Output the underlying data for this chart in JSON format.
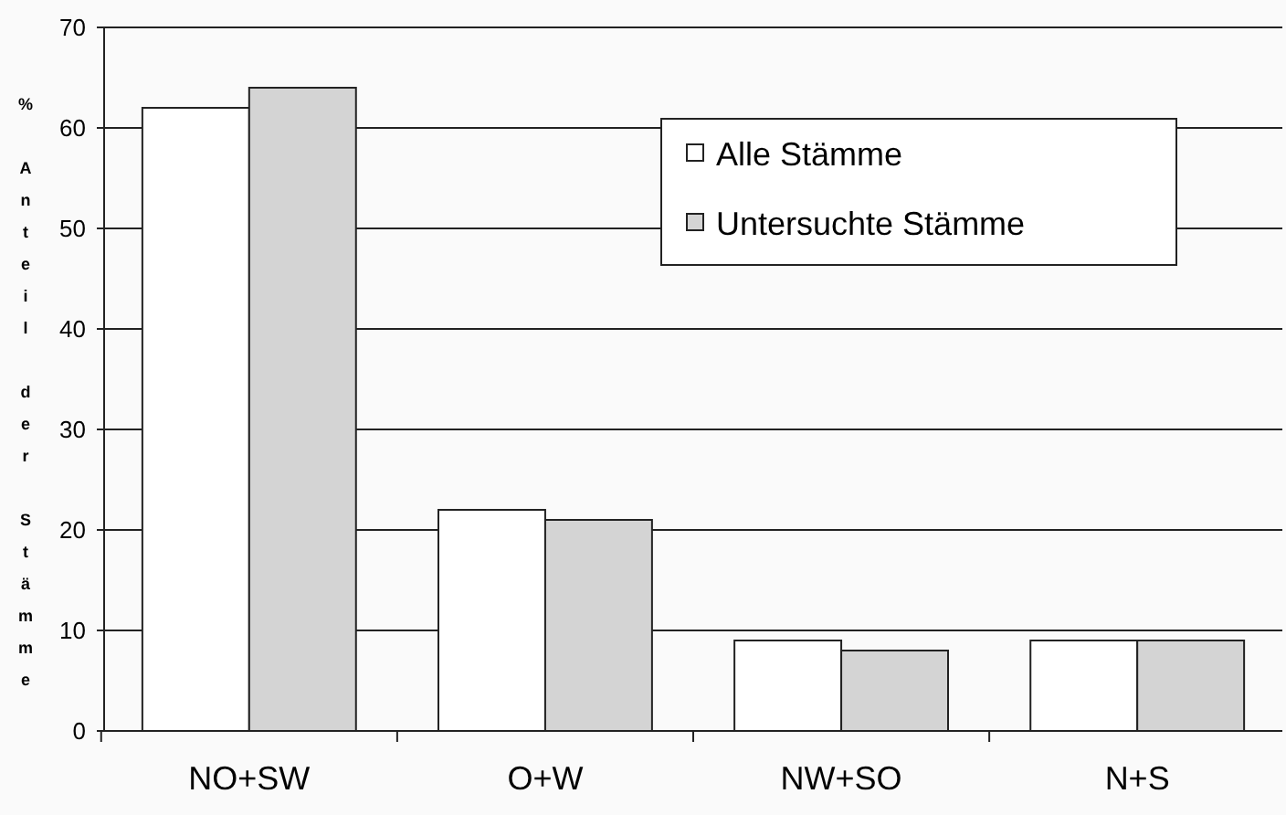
{
  "chart_data": {
    "type": "bar",
    "ylabel": "% Anteil der Stämme",
    "categories": [
      "NO+SW",
      "O+W",
      "NW+SO",
      "N+S"
    ],
    "series": [
      {
        "name": "Alle Stämme",
        "color": "#ffffff",
        "values": [
          62,
          22,
          9,
          9
        ]
      },
      {
        "name": "Untersuchte Stämme",
        "color": "#d4d4d4",
        "values": [
          64,
          21,
          8,
          9
        ]
      }
    ],
    "ylim": [
      0,
      70
    ],
    "yticks": [
      0,
      10,
      20,
      30,
      40,
      50,
      60,
      70
    ],
    "grid": "y",
    "legend": "top right"
  }
}
